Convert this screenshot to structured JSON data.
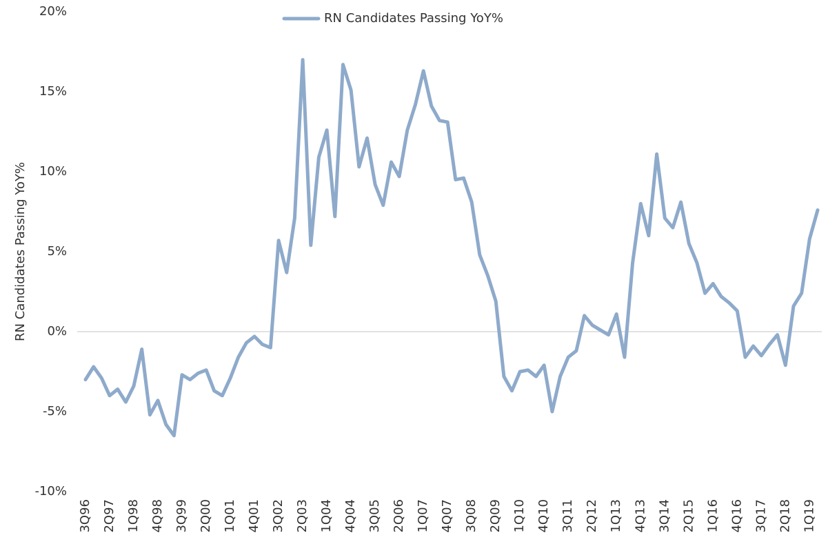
{
  "chart_data": {
    "type": "line",
    "y_label": "RN Candidates Passing YoY%",
    "categories": [
      "3Q96",
      null,
      null,
      "2Q97",
      null,
      null,
      "1Q98",
      null,
      null,
      "4Q98",
      null,
      null,
      "3Q99",
      null,
      null,
      "2Q00",
      null,
      null,
      "1Q01",
      null,
      null,
      "4Q01",
      null,
      null,
      "3Q02",
      null,
      null,
      "2Q03",
      null,
      null,
      "1Q04",
      null,
      null,
      "4Q04",
      null,
      null,
      "3Q05",
      null,
      null,
      "2Q06",
      null,
      null,
      "1Q07",
      null,
      null,
      "4Q07",
      null,
      null,
      "3Q08",
      null,
      null,
      "2Q09",
      null,
      null,
      "1Q10",
      null,
      null,
      "4Q10",
      null,
      null,
      "3Q11",
      null,
      null,
      "2Q12",
      null,
      null,
      "1Q13",
      null,
      null,
      "4Q13",
      null,
      null,
      "3Q14",
      null,
      null,
      "2Q15",
      null,
      null,
      "1Q16",
      null,
      null,
      "4Q16",
      null,
      null,
      "3Q17",
      null,
      null,
      "2Q18",
      null,
      null,
      "1Q19",
      null
    ],
    "series": [
      {
        "name": "RN Candidates Passing YoY%",
        "color": "#8eaacb",
        "values": [
          -3.0,
          -2.2,
          -2.9,
          -4.0,
          -3.6,
          -4.4,
          -3.4,
          -1.1,
          -5.2,
          -4.3,
          -5.8,
          -6.5,
          -2.7,
          -3.0,
          -2.6,
          -2.4,
          -3.7,
          -4.0,
          -2.9,
          -1.6,
          -0.7,
          -0.3,
          -0.8,
          -1.0,
          5.7,
          3.7,
          7.1,
          17.0,
          5.4,
          10.9,
          12.6,
          7.2,
          16.7,
          15.1,
          10.3,
          12.1,
          9.2,
          7.9,
          10.6,
          9.7,
          12.6,
          14.2,
          16.3,
          14.1,
          13.2,
          13.1,
          9.5,
          9.6,
          8.1,
          4.8,
          3.5,
          1.9,
          -2.8,
          -3.7,
          -2.5,
          -2.4,
          -2.8,
          -2.1,
          -5.0,
          -2.8,
          -1.6,
          -1.2,
          1.0,
          0.4,
          0.1,
          -0.2,
          1.1,
          -1.6,
          4.3,
          8.0,
          6.0,
          11.1,
          7.1,
          6.5,
          8.1,
          5.5,
          4.3,
          2.4,
          3.0,
          2.2,
          1.8,
          1.3,
          -1.6,
          -0.9,
          -1.5,
          -0.8,
          -0.2,
          -2.1,
          1.6,
          2.4,
          5.8,
          7.6
        ]
      }
    ],
    "ylim": [
      -10,
      20
    ],
    "yticks": [
      {
        "value": -10,
        "label": "-10%"
      },
      {
        "value": -5,
        "label": "-5%"
      },
      {
        "value": 0,
        "label": "0%"
      },
      {
        "value": 5,
        "label": "5%"
      },
      {
        "value": 10,
        "label": "10%"
      },
      {
        "value": 15,
        "label": "15%"
      },
      {
        "value": 20,
        "label": "20%"
      }
    ],
    "zero_line": true,
    "legend": "top"
  }
}
